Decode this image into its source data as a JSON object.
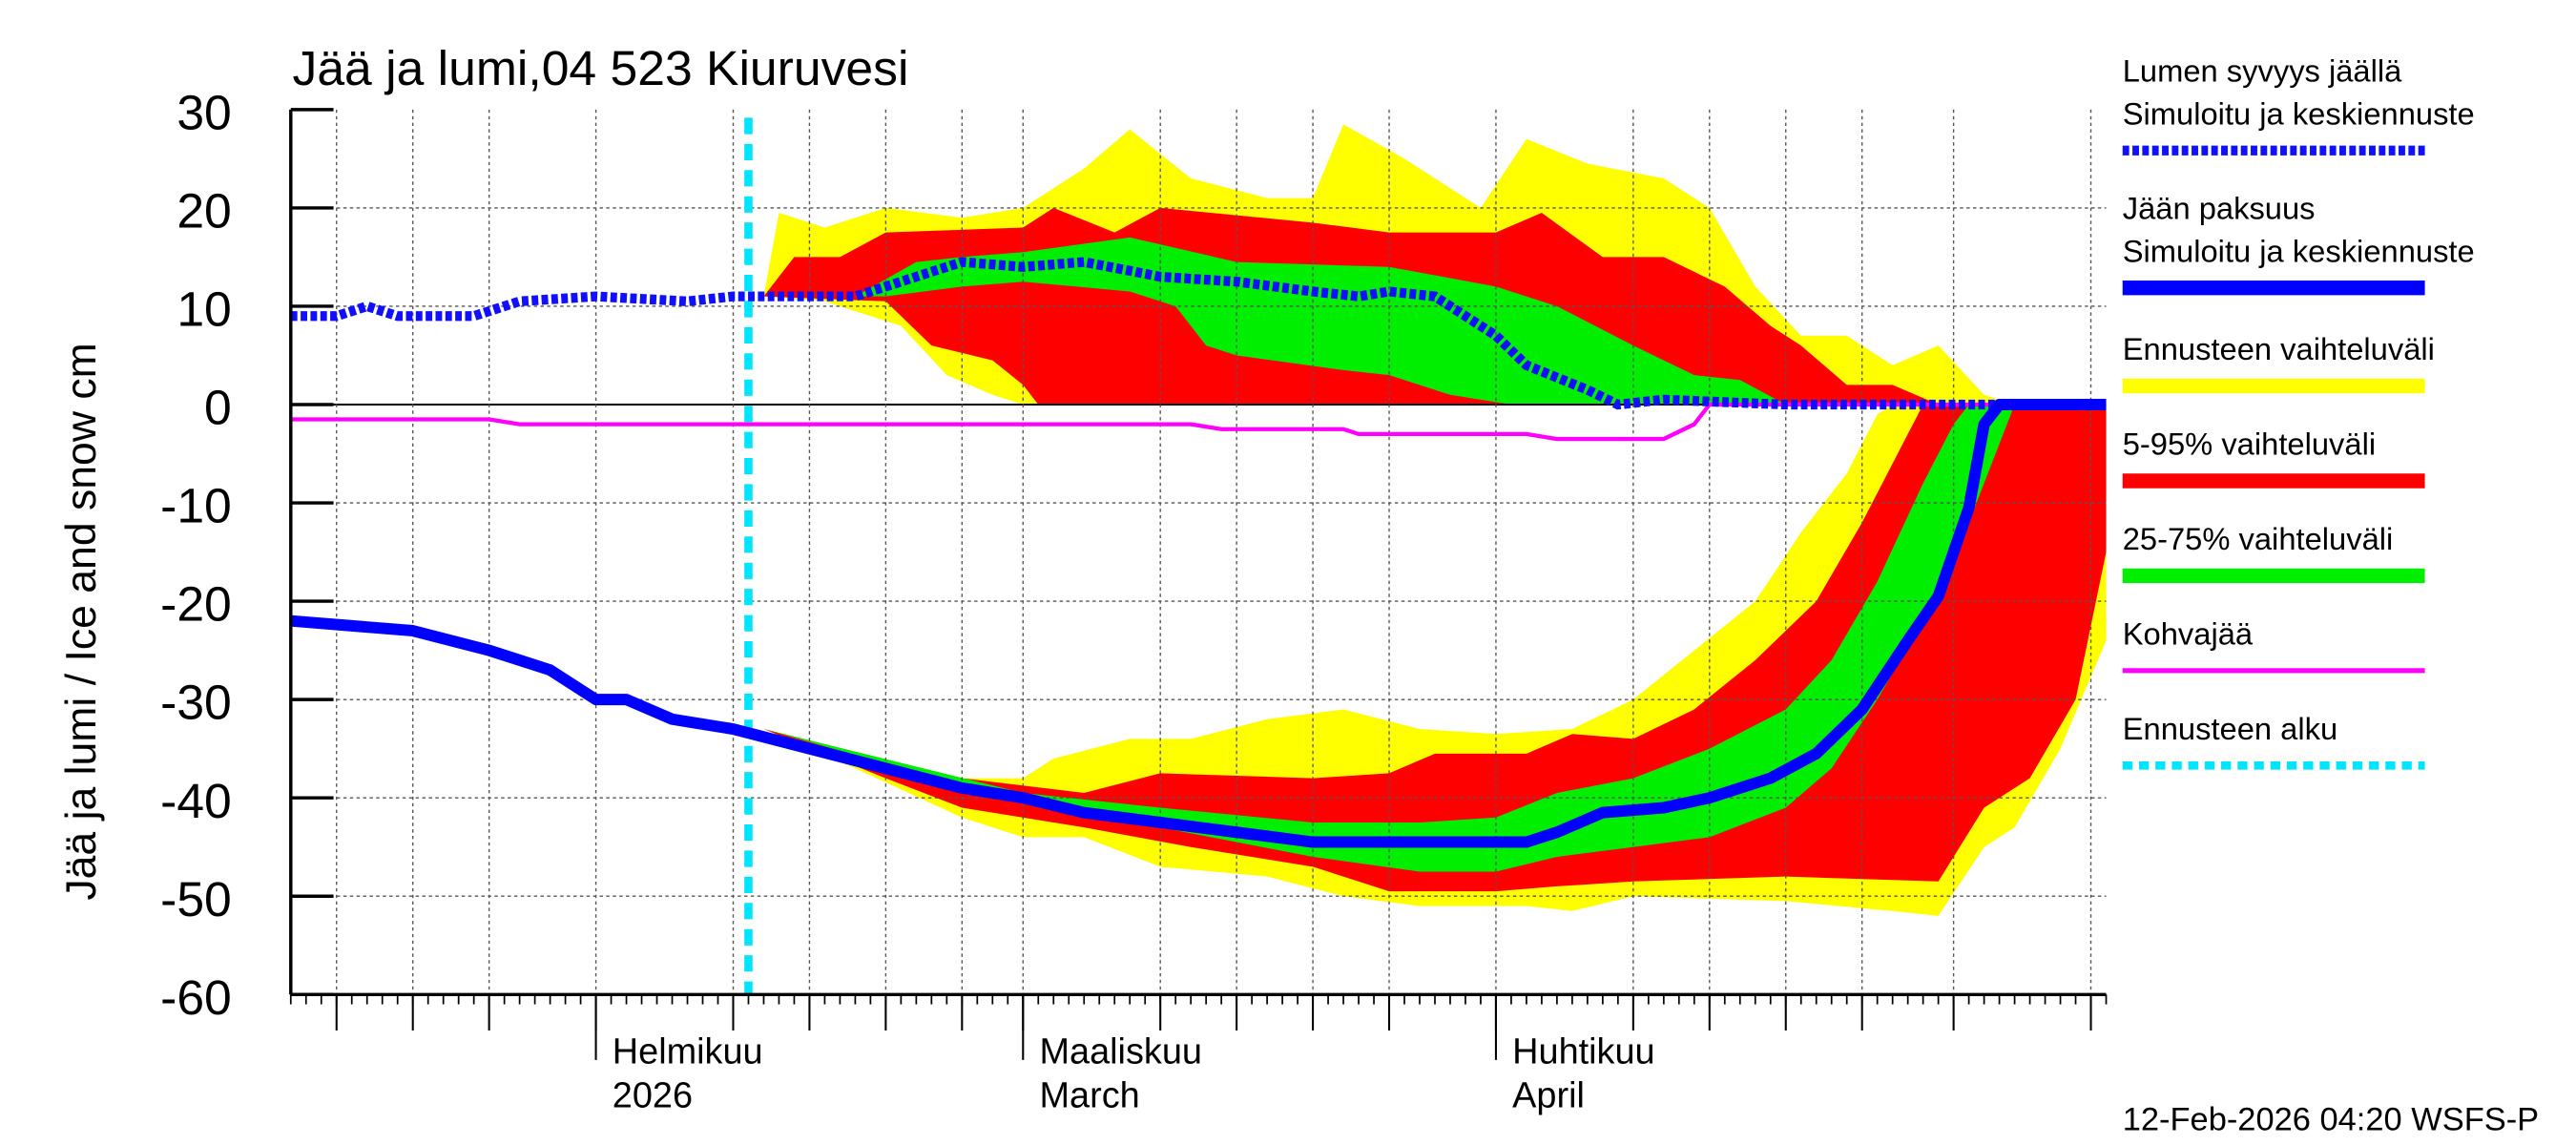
{
  "chart_data": {
    "type": "area",
    "title": "Jää ja lumi,04 523 Kiuruvesi",
    "ylabel": "Jää ja lumi / Ice and snow    cm",
    "ylim": [
      -60,
      30
    ],
    "yticks": [
      30,
      20,
      10,
      0,
      -10,
      -20,
      -30,
      -40,
      -50,
      -60
    ],
    "xlim": [
      "2026-01-12",
      "2026-05-11"
    ],
    "grid": true,
    "legend_position": "right",
    "x_month_labels": [
      {
        "date": "2026-02-01",
        "line1": "Helmikuu",
        "line2": "2026"
      },
      {
        "date": "2026-03-01",
        "line1": "Maaliskuu",
        "line2": "March"
      },
      {
        "date": "2026-04-01",
        "line1": "Huhtikuu",
        "line2": "April"
      }
    ],
    "forecast_start": "2026-02-11",
    "footer": "12-Feb-2026 04:20 WSFS-P",
    "colors": {
      "snow": "#1010ff",
      "ice": "#0000ff",
      "range": "#ffff00",
      "p5_95": "#ff0000",
      "p25_75": "#00ee00",
      "slush": "#ff00ff",
      "forecast_start": "#00e5ff"
    },
    "legend": [
      {
        "line1": "Lumen syvyys jäällä",
        "line2": "Simuloitu ja keskiennuste",
        "style": "dashed-blue"
      },
      {
        "line1": "Jään paksuus",
        "line2": "Simuloitu ja keskiennuste",
        "style": "solid-blue"
      },
      {
        "line1": "Ennusteen vaihteluväli",
        "style": "yellow"
      },
      {
        "line1": "5-95% vaihteluväli",
        "style": "red"
      },
      {
        "line1": "25-75% vaihteluväli",
        "style": "green"
      },
      {
        "line1": "Kohvajää",
        "style": "magenta"
      },
      {
        "line1": "Ennusteen alku",
        "style": "cyan-dashed"
      }
    ],
    "bands": {
      "snow_range": {
        "upper": [
          [
            "2026-02-12",
            11
          ],
          [
            "2026-02-13",
            19.5
          ],
          [
            "2026-02-16",
            18
          ],
          [
            "2026-02-20",
            20
          ],
          [
            "2026-02-25",
            19
          ],
          [
            "2026-03-01",
            20
          ],
          [
            "2026-03-05",
            24
          ],
          [
            "2026-03-08",
            28
          ],
          [
            "2026-03-12",
            23
          ],
          [
            "2026-03-17",
            21
          ],
          [
            "2026-03-20",
            21
          ],
          [
            "2026-03-22",
            28.5
          ],
          [
            "2026-03-26",
            25
          ],
          [
            "2026-03-31",
            20
          ],
          [
            "2026-04-03",
            27
          ],
          [
            "2026-04-07",
            24.5
          ],
          [
            "2026-04-12",
            23
          ],
          [
            "2026-04-15",
            20
          ],
          [
            "2026-04-18",
            12
          ],
          [
            "2026-04-21",
            7
          ],
          [
            "2026-04-24",
            7
          ],
          [
            "2026-04-27",
            4
          ],
          [
            "2026-04-30",
            6
          ],
          [
            "2026-05-03",
            1
          ],
          [
            "2026-05-05",
            0
          ]
        ],
        "lower": [
          [
            "2026-02-12",
            11
          ],
          [
            "2026-02-16",
            10.5
          ],
          [
            "2026-02-21",
            8
          ],
          [
            "2026-02-24",
            3
          ],
          [
            "2026-02-27",
            1
          ],
          [
            "2026-03-01",
            0
          ],
          [
            "2026-05-05",
            0
          ]
        ]
      },
      "snow_p5_95": {
        "upper": [
          [
            "2026-02-12",
            11
          ],
          [
            "2026-02-14",
            15
          ],
          [
            "2026-02-17",
            15
          ],
          [
            "2026-02-20",
            17.5
          ],
          [
            "2026-03-01",
            18
          ],
          [
            "2026-03-03",
            20
          ],
          [
            "2026-03-07",
            17.5
          ],
          [
            "2026-03-10",
            20
          ],
          [
            "2026-03-20",
            18.5
          ],
          [
            "2026-03-25",
            17.5
          ],
          [
            "2026-04-01",
            17.5
          ],
          [
            "2026-04-04",
            19.5
          ],
          [
            "2026-04-08",
            15
          ],
          [
            "2026-04-12",
            15
          ],
          [
            "2026-04-16",
            12
          ],
          [
            "2026-04-19",
            8
          ],
          [
            "2026-04-21",
            6
          ],
          [
            "2026-04-24",
            2
          ],
          [
            "2026-04-27",
            2
          ],
          [
            "2026-04-30",
            0
          ]
        ],
        "lower": [
          [
            "2026-02-12",
            11
          ],
          [
            "2026-02-20",
            10.5
          ],
          [
            "2026-02-23",
            6
          ],
          [
            "2026-02-27",
            4.5
          ],
          [
            "2026-03-01",
            2
          ],
          [
            "2026-03-02",
            0
          ],
          [
            "2026-04-30",
            0
          ]
        ]
      },
      "snow_p25_75": {
        "upper": [
          [
            "2026-02-12",
            11
          ],
          [
            "2026-02-18",
            11
          ],
          [
            "2026-02-22",
            14.5
          ],
          [
            "2026-02-25",
            15
          ],
          [
            "2026-03-01",
            15.5
          ],
          [
            "2026-03-08",
            17
          ],
          [
            "2026-03-15",
            14.5
          ],
          [
            "2026-03-25",
            14
          ],
          [
            "2026-04-01",
            12
          ],
          [
            "2026-04-05",
            10
          ],
          [
            "2026-04-10",
            6
          ],
          [
            "2026-04-14",
            3
          ],
          [
            "2026-04-17",
            2.5
          ],
          [
            "2026-04-20",
            0
          ]
        ],
        "lower": [
          [
            "2026-02-12",
            11
          ],
          [
            "2026-02-20",
            11
          ],
          [
            "2026-02-25",
            12
          ],
          [
            "2026-03-01",
            12.5
          ],
          [
            "2026-03-08",
            11.5
          ],
          [
            "2026-03-11",
            10
          ],
          [
            "2026-03-13",
            6
          ],
          [
            "2026-03-15",
            5
          ],
          [
            "2026-03-22",
            3.5
          ],
          [
            "2026-03-25",
            3
          ],
          [
            "2026-03-29",
            1
          ],
          [
            "2026-04-02",
            0
          ],
          [
            "2026-04-20",
            0
          ]
        ]
      },
      "ice_range": {
        "upper": [
          [
            "2026-02-12",
            -33
          ],
          [
            "2026-02-18",
            -36
          ],
          [
            "2026-02-25",
            -38
          ],
          [
            "2026-03-01",
            -38
          ],
          [
            "2026-03-03",
            -36
          ],
          [
            "2026-03-08",
            -34
          ],
          [
            "2026-03-12",
            -34
          ],
          [
            "2026-03-17",
            -32
          ],
          [
            "2026-03-22",
            -31
          ],
          [
            "2026-03-27",
            -33
          ],
          [
            "2026-04-01",
            -33.5
          ],
          [
            "2026-04-06",
            -33
          ],
          [
            "2026-04-10",
            -30
          ],
          [
            "2026-04-14",
            -25
          ],
          [
            "2026-04-18",
            -20
          ],
          [
            "2026-04-21",
            -13
          ],
          [
            "2026-04-24",
            -7
          ],
          [
            "2026-04-26",
            -1
          ],
          [
            "2026-04-27",
            0
          ],
          [
            "2026-05-11",
            0
          ]
        ],
        "lower": [
          [
            "2026-02-12",
            -33
          ],
          [
            "2026-02-18",
            -37
          ],
          [
            "2026-02-25",
            -42
          ],
          [
            "2026-03-01",
            -44
          ],
          [
            "2026-03-05",
            -44
          ],
          [
            "2026-03-10",
            -47
          ],
          [
            "2026-03-17",
            -48
          ],
          [
            "2026-03-22",
            -50
          ],
          [
            "2026-03-27",
            -51
          ],
          [
            "2026-04-03",
            -51
          ],
          [
            "2026-04-06",
            -51.5
          ],
          [
            "2026-04-10",
            -50
          ],
          [
            "2026-04-20",
            -50.5
          ],
          [
            "2026-04-27",
            -51.5
          ],
          [
            "2026-04-30",
            -52
          ],
          [
            "2026-05-03",
            -45
          ],
          [
            "2026-05-05",
            -43
          ],
          [
            "2026-05-08",
            -35
          ],
          [
            "2026-05-11",
            -24
          ]
        ]
      },
      "ice_p5_95": {
        "upper": [
          [
            "2026-02-12",
            -33
          ],
          [
            "2026-02-25",
            -38
          ],
          [
            "2026-03-05",
            -39.5
          ],
          [
            "2026-03-10",
            -37.5
          ],
          [
            "2026-03-20",
            -38
          ],
          [
            "2026-03-25",
            -37.5
          ],
          [
            "2026-03-28",
            -35.5
          ],
          [
            "2026-04-03",
            -35.5
          ],
          [
            "2026-04-06",
            -33.5
          ],
          [
            "2026-04-10",
            -34
          ],
          [
            "2026-04-14",
            -31
          ],
          [
            "2026-04-18",
            -26
          ],
          [
            "2026-04-22",
            -20
          ],
          [
            "2026-04-25",
            -12
          ],
          [
            "2026-04-28",
            -3
          ],
          [
            "2026-04-29",
            0
          ],
          [
            "2026-05-11",
            0
          ]
        ],
        "lower": [
          [
            "2026-02-12",
            -33
          ],
          [
            "2026-02-20",
            -38
          ],
          [
            "2026-02-25",
            -41
          ],
          [
            "2026-03-05",
            -43
          ],
          [
            "2026-03-12",
            -45
          ],
          [
            "2026-03-20",
            -47
          ],
          [
            "2026-03-25",
            -49.5
          ],
          [
            "2026-04-01",
            -49.5
          ],
          [
            "2026-04-05",
            -49
          ],
          [
            "2026-04-10",
            -48.5
          ],
          [
            "2026-04-20",
            -48
          ],
          [
            "2026-04-30",
            -48.5
          ],
          [
            "2026-05-03",
            -41
          ],
          [
            "2026-05-06",
            -38
          ],
          [
            "2026-05-09",
            -30
          ],
          [
            "2026-05-11",
            -15
          ]
        ]
      },
      "ice_p25_75": {
        "upper": [
          [
            "2026-02-12",
            -33
          ],
          [
            "2026-03-01",
            -39.5
          ],
          [
            "2026-03-10",
            -41
          ],
          [
            "2026-03-20",
            -42.5
          ],
          [
            "2026-03-27",
            -42.5
          ],
          [
            "2026-04-01",
            -42
          ],
          [
            "2026-04-05",
            -39.5
          ],
          [
            "2026-04-10",
            -38
          ],
          [
            "2026-04-15",
            -35
          ],
          [
            "2026-04-20",
            -31
          ],
          [
            "2026-04-23",
            -26
          ],
          [
            "2026-04-26",
            -18
          ],
          [
            "2026-04-29",
            -8
          ],
          [
            "2026-05-01",
            -2
          ],
          [
            "2026-05-02",
            0
          ]
        ],
        "lower": [
          [
            "2026-02-12",
            -33
          ],
          [
            "2026-03-01",
            -40.5
          ],
          [
            "2026-03-10",
            -43
          ],
          [
            "2026-03-20",
            -46
          ],
          [
            "2026-03-27",
            -47.5
          ],
          [
            "2026-04-01",
            -47.5
          ],
          [
            "2026-04-05",
            -46
          ],
          [
            "2026-04-10",
            -45
          ],
          [
            "2026-04-15",
            -44
          ],
          [
            "2026-04-20",
            -41
          ],
          [
            "2026-04-23",
            -37
          ],
          [
            "2026-04-26",
            -30
          ],
          [
            "2026-04-29",
            -22
          ],
          [
            "2026-05-02",
            -12
          ],
          [
            "2026-05-05",
            0
          ]
        ]
      }
    },
    "series": {
      "snow_depth": [
        [
          "2026-01-12",
          9
        ],
        [
          "2026-01-15",
          9
        ],
        [
          "2026-01-17",
          10
        ],
        [
          "2026-01-19",
          9
        ],
        [
          "2026-01-24",
          9
        ],
        [
          "2026-01-27",
          10.5
        ],
        [
          "2026-02-01",
          11
        ],
        [
          "2026-02-07",
          10.5
        ],
        [
          "2026-02-10",
          11
        ],
        [
          "2026-02-15",
          11
        ],
        [
          "2026-02-18",
          11
        ],
        [
          "2026-02-21",
          12.5
        ],
        [
          "2026-02-25",
          14.5
        ],
        [
          "2026-03-01",
          14
        ],
        [
          "2026-03-05",
          14.5
        ],
        [
          "2026-03-10",
          13
        ],
        [
          "2026-03-15",
          12.5
        ],
        [
          "2026-03-20",
          11.5
        ],
        [
          "2026-03-23",
          11
        ],
        [
          "2026-03-25",
          11.5
        ],
        [
          "2026-03-28",
          11
        ],
        [
          "2026-04-01",
          7
        ],
        [
          "2026-04-03",
          4
        ],
        [
          "2026-04-07",
          1.5
        ],
        [
          "2026-04-09",
          0
        ],
        [
          "2026-04-12",
          0.5
        ],
        [
          "2026-04-20",
          0
        ],
        [
          "2026-05-11",
          0
        ]
      ],
      "ice_thickness": [
        [
          "2026-01-12",
          -22
        ],
        [
          "2026-01-20",
          -23
        ],
        [
          "2026-01-25",
          -25
        ],
        [
          "2026-01-29",
          -27
        ],
        [
          "2026-02-01",
          -30
        ],
        [
          "2026-02-03",
          -30
        ],
        [
          "2026-02-06",
          -32
        ],
        [
          "2026-02-10",
          -33
        ],
        [
          "2026-02-15",
          -35
        ],
        [
          "2026-02-20",
          -37
        ],
        [
          "2026-02-25",
          -39
        ],
        [
          "2026-03-01",
          -40
        ],
        [
          "2026-03-05",
          -41.5
        ],
        [
          "2026-03-10",
          -42.5
        ],
        [
          "2026-03-15",
          -43.5
        ],
        [
          "2026-03-20",
          -44.5
        ],
        [
          "2026-03-25",
          -44.5
        ],
        [
          "2026-04-01",
          -44.5
        ],
        [
          "2026-04-03",
          -44.5
        ],
        [
          "2026-04-05",
          -43.5
        ],
        [
          "2026-04-08",
          -41.5
        ],
        [
          "2026-04-12",
          -41
        ],
        [
          "2026-04-15",
          -40
        ],
        [
          "2026-04-19",
          -38
        ],
        [
          "2026-04-22",
          -35.5
        ],
        [
          "2026-04-25",
          -31
        ],
        [
          "2026-04-28",
          -24
        ],
        [
          "2026-04-30",
          -19.5
        ],
        [
          "2026-05-02",
          -10.5
        ],
        [
          "2026-05-03",
          -2
        ],
        [
          "2026-05-04",
          0
        ],
        [
          "2026-05-11",
          0
        ]
      ],
      "slush_ice": [
        [
          "2026-01-12",
          -1.5
        ],
        [
          "2026-01-25",
          -1.5
        ],
        [
          "2026-01-27",
          -2
        ],
        [
          "2026-03-12",
          -2
        ],
        [
          "2026-03-14",
          -2.5
        ],
        [
          "2026-03-22",
          -2.5
        ],
        [
          "2026-03-23",
          -3
        ],
        [
          "2026-04-03",
          -3
        ],
        [
          "2026-04-05",
          -3.5
        ],
        [
          "2026-04-12",
          -3.5
        ],
        [
          "2026-04-14",
          -2
        ],
        [
          "2026-04-15",
          0
        ],
        [
          "2026-05-11",
          0
        ]
      ]
    }
  }
}
